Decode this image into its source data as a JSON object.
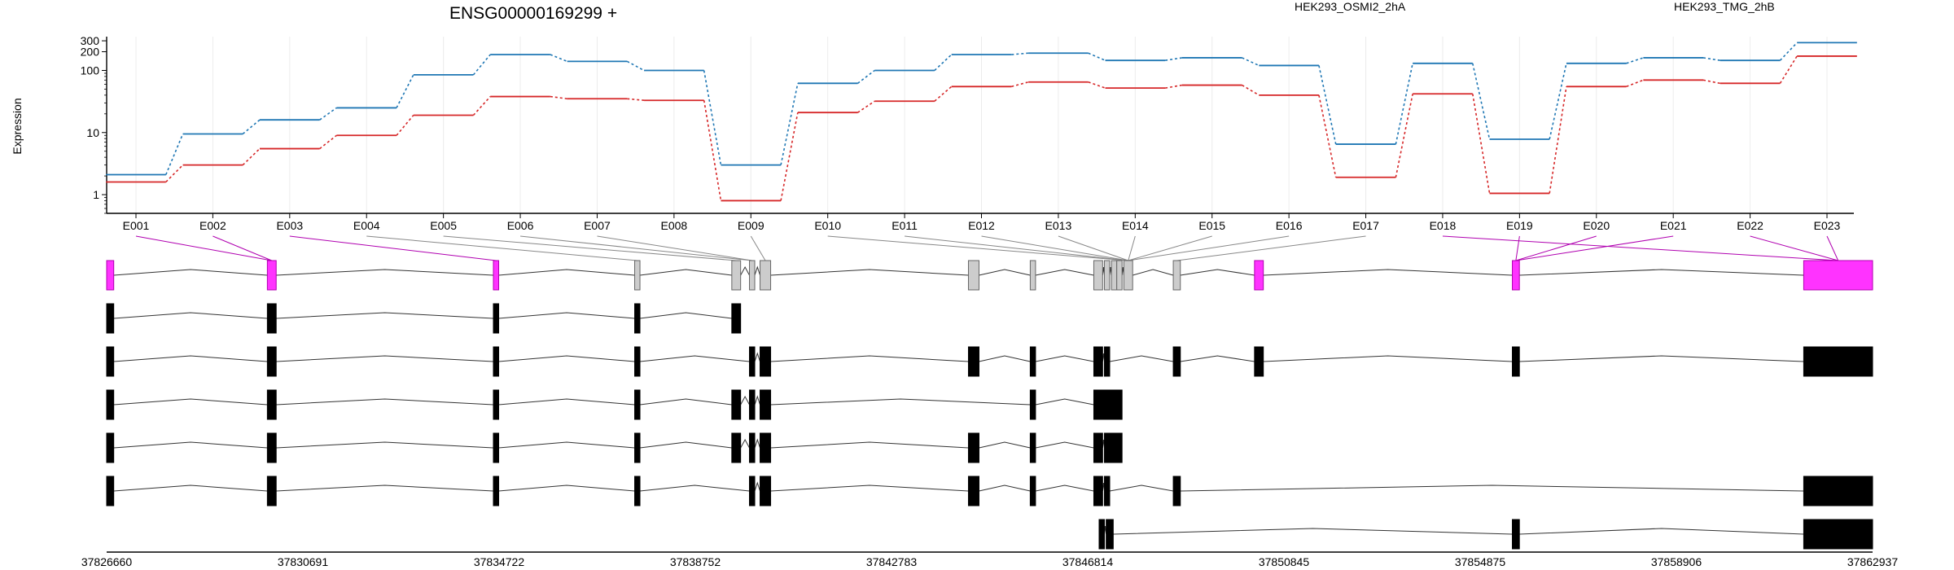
{
  "chart_data": {
    "type": "line",
    "title": "ENSG00000169299 +",
    "ylabel": "Expression",
    "yscale": "log",
    "ylim": [
      0.5,
      350
    ],
    "yticks": [
      1,
      10,
      100,
      200,
      300
    ],
    "legend_position": "top",
    "categories": [
      "E001",
      "E002",
      "E003",
      "E004",
      "E005",
      "E006",
      "E007",
      "E008",
      "E009",
      "E010",
      "E011",
      "E012",
      "E013",
      "E014",
      "E015",
      "E016",
      "E017",
      "E018",
      "E019",
      "E020",
      "E021",
      "E022",
      "E023"
    ],
    "series": [
      {
        "name": "HEK293_OSMI2_2hA",
        "color": "#d62728",
        "values": [
          1.6,
          3.0,
          5.5,
          9.0,
          19.0,
          38.0,
          35.0,
          33.0,
          0.8,
          21.0,
          32.0,
          55.0,
          65.0,
          52.0,
          58.0,
          40.0,
          1.9,
          42.0,
          1.05,
          55.0,
          70.0,
          62.0,
          170.0
        ]
      },
      {
        "name": "HEK293_TMG_2hB",
        "color": "#1f77b4",
        "values": [
          2.1,
          9.5,
          16.0,
          25.0,
          85.0,
          180.0,
          140.0,
          100.0,
          3.0,
          62.0,
          100.0,
          180.0,
          190.0,
          145.0,
          160.0,
          120.0,
          6.5,
          130.0,
          7.8,
          130.0,
          160.0,
          145.0,
          280.0
        ]
      }
    ],
    "gene_track": {
      "coordinate_ticks": [
        "37826660",
        "37830691",
        "37834722",
        "37838752",
        "37842783",
        "37846814",
        "37850845",
        "37854875",
        "37858906",
        "37862937"
      ],
      "highlight_color": "#ff33ff",
      "exon_span_fraction": [
        [
          0.0,
          0.004
        ],
        [
          0.091,
          0.096
        ],
        [
          0.219,
          0.222
        ],
        [
          0.299,
          0.302
        ],
        [
          0.354,
          0.359
        ],
        [
          0.364,
          0.367
        ],
        [
          0.37,
          0.376
        ],
        [
          0.488,
          0.494
        ],
        [
          0.523,
          0.526
        ],
        [
          0.559,
          0.564
        ],
        [
          0.565,
          0.568
        ],
        [
          0.569,
          0.572
        ],
        [
          0.572,
          0.575
        ],
        [
          0.576,
          0.581
        ],
        [
          0.604,
          0.608
        ],
        [
          0.65,
          0.655
        ],
        [
          0.796,
          0.8
        ],
        [
          0.961,
          1.0
        ]
      ],
      "highlighted_exons": [
        0,
        1,
        2,
        15,
        16,
        17
      ],
      "exon_bin_links": [
        [
          0,
          1
        ],
        [
          1,
          1
        ],
        [
          2,
          2
        ],
        [
          3,
          3
        ],
        [
          4,
          4
        ],
        [
          5,
          5
        ],
        [
          6,
          5
        ],
        [
          8,
          6
        ],
        [
          9,
          13
        ],
        [
          10,
          13
        ],
        [
          11,
          13
        ],
        [
          12,
          13
        ],
        [
          13,
          13
        ],
        [
          14,
          13
        ],
        [
          15,
          13
        ],
        [
          16,
          14
        ],
        [
          17,
          17
        ],
        [
          18,
          16
        ],
        [
          19,
          16
        ],
        [
          20,
          16
        ],
        [
          21,
          17
        ],
        [
          22,
          17
        ]
      ],
      "transcripts": [
        {
          "exons": [
            [
              0.0,
              0.004
            ],
            [
              0.091,
              0.096
            ],
            [
              0.219,
              0.222
            ],
            [
              0.299,
              0.302
            ],
            [
              0.354,
              0.359
            ]
          ]
        },
        {
          "exons": [
            [
              0.0,
              0.004
            ],
            [
              0.091,
              0.096
            ],
            [
              0.219,
              0.222
            ],
            [
              0.299,
              0.302
            ],
            [
              0.364,
              0.367
            ],
            [
              0.37,
              0.376
            ],
            [
              0.488,
              0.494
            ],
            [
              0.523,
              0.526
            ],
            [
              0.559,
              0.564
            ],
            [
              0.565,
              0.568
            ],
            [
              0.604,
              0.608
            ],
            [
              0.65,
              0.655
            ],
            [
              0.796,
              0.8
            ],
            [
              0.961,
              1.0
            ]
          ]
        },
        {
          "exons": [
            [
              0.0,
              0.004
            ],
            [
              0.091,
              0.096
            ],
            [
              0.219,
              0.222
            ],
            [
              0.299,
              0.302
            ],
            [
              0.354,
              0.359
            ],
            [
              0.364,
              0.367
            ],
            [
              0.37,
              0.376
            ],
            [
              0.523,
              0.526
            ],
            [
              0.559,
              0.575
            ]
          ]
        },
        {
          "exons": [
            [
              0.0,
              0.004
            ],
            [
              0.091,
              0.096
            ],
            [
              0.219,
              0.222
            ],
            [
              0.299,
              0.302
            ],
            [
              0.354,
              0.359
            ],
            [
              0.364,
              0.367
            ],
            [
              0.37,
              0.376
            ],
            [
              0.488,
              0.494
            ],
            [
              0.523,
              0.526
            ],
            [
              0.559,
              0.564
            ],
            [
              0.565,
              0.575
            ]
          ]
        },
        {
          "exons": [
            [
              0.0,
              0.004
            ],
            [
              0.091,
              0.096
            ],
            [
              0.219,
              0.222
            ],
            [
              0.299,
              0.302
            ],
            [
              0.364,
              0.367
            ],
            [
              0.37,
              0.376
            ],
            [
              0.488,
              0.494
            ],
            [
              0.523,
              0.526
            ],
            [
              0.559,
              0.564
            ],
            [
              0.565,
              0.568
            ],
            [
              0.604,
              0.608
            ],
            [
              0.961,
              1.0
            ]
          ]
        },
        {
          "exons": [
            [
              0.562,
              0.565
            ],
            [
              0.566,
              0.57
            ],
            [
              0.796,
              0.8
            ],
            [
              0.961,
              1.0
            ]
          ]
        }
      ]
    }
  }
}
